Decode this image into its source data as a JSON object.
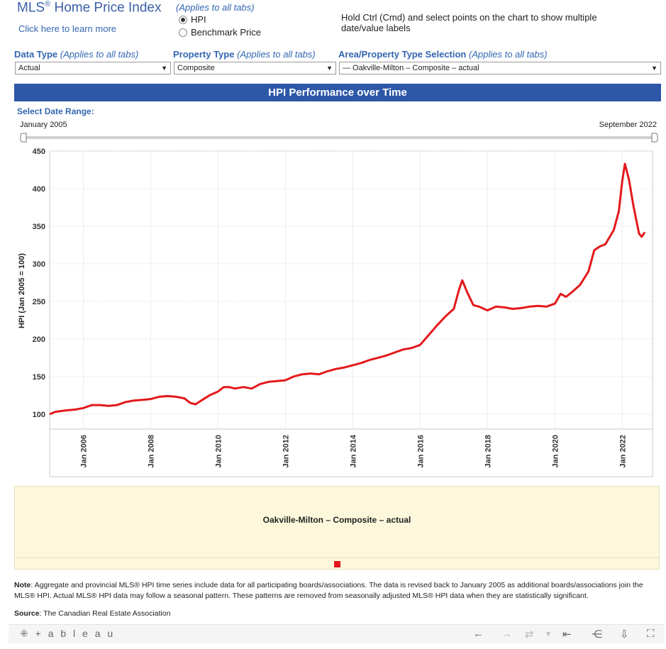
{
  "header": {
    "title": "MLS",
    "title_sup": "®",
    "title_rest": " Home Price Index",
    "learn_more": "Click here to learn more",
    "applies_note": "(Applies to all tabs)",
    "radio_options": [
      "HPI",
      "Benchmark Price"
    ],
    "radio_selected": "HPI",
    "hint": "Hold Ctrl (Cmd) and select points on the chart to show multiple date/value labels"
  },
  "filters": {
    "data_type": {
      "label": "Data Type",
      "note": "(Applies to all tabs)",
      "value": "Actual"
    },
    "property_type": {
      "label": "Property Type",
      "note": "(Applies to all tabs)",
      "value": "Composite"
    },
    "area": {
      "label": "Area/Property Type Selection",
      "note": "(Applies to all tabs)",
      "value": "— Oakville-Milton – Composite – actual"
    }
  },
  "band_title": "HPI Performance over Time",
  "date_range": {
    "label": "Select Date Range:",
    "start": "January 2005",
    "end": "September 2022"
  },
  "chart_data": {
    "type": "line",
    "ylabel": "HPI (Jan 2005 = 100)",
    "ylim": [
      80,
      450
    ],
    "y_ticks": [
      100,
      150,
      200,
      250,
      300,
      350,
      400,
      450
    ],
    "xlim": [
      2005.0,
      2022.9
    ],
    "x_ticks": [
      {
        "label": "Jan 2006",
        "value": 2006
      },
      {
        "label": "Jan 2008",
        "value": 2008
      },
      {
        "label": "Jan 2010",
        "value": 2010
      },
      {
        "label": "Jan 2012",
        "value": 2012
      },
      {
        "label": "Jan 2014",
        "value": 2014
      },
      {
        "label": "Jan 2016",
        "value": 2016
      },
      {
        "label": "Jan 2018",
        "value": 2018
      },
      {
        "label": "Jan 2020",
        "value": 2020
      },
      {
        "label": "Jan 2022",
        "value": 2022
      }
    ],
    "series": [
      {
        "name": "Oakville-Milton – Composite – actual",
        "color": "#e3191c",
        "points": [
          [
            2005.0,
            100
          ],
          [
            2005.17,
            103
          ],
          [
            2005.33,
            104
          ],
          [
            2005.5,
            105
          ],
          [
            2005.75,
            106
          ],
          [
            2006.0,
            108
          ],
          [
            2006.25,
            112
          ],
          [
            2006.5,
            112
          ],
          [
            2006.75,
            111
          ],
          [
            2007.0,
            112
          ],
          [
            2007.25,
            116
          ],
          [
            2007.5,
            118
          ],
          [
            2007.75,
            119
          ],
          [
            2008.0,
            120
          ],
          [
            2008.25,
            123
          ],
          [
            2008.5,
            124
          ],
          [
            2008.75,
            123
          ],
          [
            2009.0,
            121
          ],
          [
            2009.17,
            115
          ],
          [
            2009.33,
            113
          ],
          [
            2009.5,
            118
          ],
          [
            2009.75,
            125
          ],
          [
            2010.0,
            130
          ],
          [
            2010.17,
            136
          ],
          [
            2010.33,
            136
          ],
          [
            2010.5,
            134
          ],
          [
            2010.75,
            136
          ],
          [
            2011.0,
            134
          ],
          [
            2011.25,
            140
          ],
          [
            2011.5,
            143
          ],
          [
            2011.75,
            144
          ],
          [
            2012.0,
            145
          ],
          [
            2012.25,
            150
          ],
          [
            2012.5,
            153
          ],
          [
            2012.75,
            154
          ],
          [
            2013.0,
            153
          ],
          [
            2013.25,
            157
          ],
          [
            2013.5,
            160
          ],
          [
            2013.75,
            162
          ],
          [
            2014.0,
            165
          ],
          [
            2014.25,
            168
          ],
          [
            2014.5,
            172
          ],
          [
            2014.75,
            175
          ],
          [
            2015.0,
            178
          ],
          [
            2015.25,
            182
          ],
          [
            2015.5,
            186
          ],
          [
            2015.75,
            188
          ],
          [
            2016.0,
            192
          ],
          [
            2016.25,
            205
          ],
          [
            2016.5,
            218
          ],
          [
            2016.75,
            230
          ],
          [
            2017.0,
            240
          ],
          [
            2017.15,
            265
          ],
          [
            2017.25,
            278
          ],
          [
            2017.4,
            262
          ],
          [
            2017.58,
            245
          ],
          [
            2017.75,
            243
          ],
          [
            2018.0,
            238
          ],
          [
            2018.25,
            243
          ],
          [
            2018.5,
            242
          ],
          [
            2018.75,
            240
          ],
          [
            2019.0,
            241
          ],
          [
            2019.25,
            243
          ],
          [
            2019.5,
            244
          ],
          [
            2019.75,
            243
          ],
          [
            2020.0,
            247
          ],
          [
            2020.17,
            260
          ],
          [
            2020.33,
            256
          ],
          [
            2020.5,
            262
          ],
          [
            2020.75,
            272
          ],
          [
            2021.0,
            290
          ],
          [
            2021.17,
            318
          ],
          [
            2021.33,
            323
          ],
          [
            2021.5,
            326
          ],
          [
            2021.75,
            345
          ],
          [
            2021.9,
            370
          ],
          [
            2022.0,
            410
          ],
          [
            2022.08,
            433
          ],
          [
            2022.2,
            412
          ],
          [
            2022.33,
            378
          ],
          [
            2022.5,
            340
          ],
          [
            2022.58,
            336
          ],
          [
            2022.67,
            342
          ]
        ]
      }
    ]
  },
  "legend": {
    "title": "Oakville-Milton – Composite – actual",
    "color": "#e3191c"
  },
  "note": {
    "label": "Note",
    "text": ": Aggregate and provincial MLS® HPI time series include data for all participating boards/associations. The data is revised back to January 2005 as additional boards/associations join the MLS® HPI. Actual MLS® HPI data may follow a seasonal pattern. These patterns are removed from seasonally adjusted MLS® HPI data when they are statistically significant."
  },
  "source": {
    "label": "Source",
    "text": ": The Canadian Real Estate Association"
  },
  "toolbar": {
    "logo": "+ a b l e a u"
  }
}
